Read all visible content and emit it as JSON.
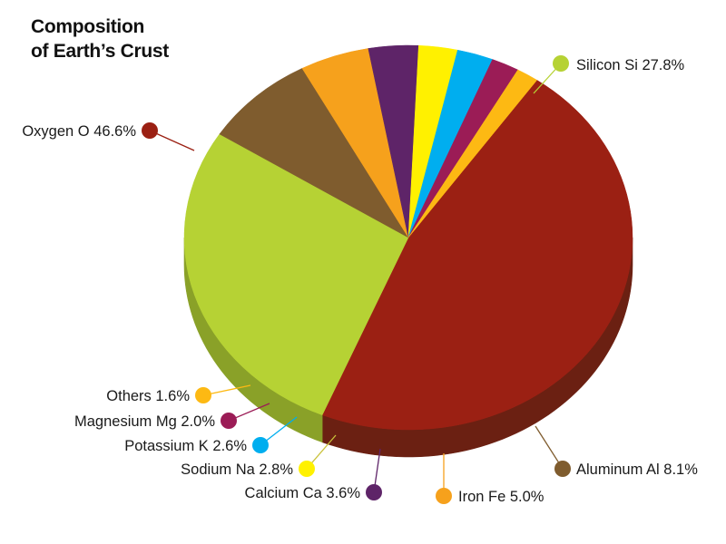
{
  "chart_data": {
    "type": "pie",
    "title_lines": [
      "Composition",
      "of Earth’s Crust"
    ],
    "slices": [
      {
        "label": "Oxygen O 46.6%",
        "name": "Oxygen",
        "symbol": "O",
        "value": 46.6,
        "color": "#9b2013",
        "side_color": "#6b2012"
      },
      {
        "label": "Silicon Si 27.8%",
        "name": "Silicon",
        "symbol": "Si",
        "value": 27.8,
        "color": "#b6d234",
        "side_color": "#8aa128"
      },
      {
        "label": "Aluminum Al 8.1%",
        "name": "Aluminum",
        "symbol": "Al",
        "value": 8.1,
        "color": "#7f5c2e",
        "side_color": "#523c1d"
      },
      {
        "label": "Iron Fe 5.0%",
        "name": "Iron",
        "symbol": "Fe",
        "value": 5.0,
        "color": "#f6a11c",
        "side_color": "#b6781f"
      },
      {
        "label": "Calcium Ca 3.6%",
        "name": "Calcium",
        "symbol": "Ca",
        "value": 3.6,
        "color": "#5e2468",
        "side_color": "#3e1546"
      },
      {
        "label": "Sodium Na 2.8%",
        "name": "Sodium",
        "symbol": "Na",
        "value": 2.8,
        "color": "#fff100",
        "side_color": "#cdbf68"
      },
      {
        "label": "Potassium K 2.6%",
        "name": "Potassium",
        "symbol": "K",
        "value": 2.6,
        "color": "#00aeef",
        "side_color": "#1f8ae6"
      },
      {
        "label": "Magnesium Mg 2.0%",
        "name": "Magnesium",
        "symbol": "Mg",
        "value": 2.0,
        "color": "#9b1c56",
        "side_color": "#6d1a3c"
      },
      {
        "label": "Others 1.6%",
        "name": "Others",
        "symbol": "",
        "value": 1.6,
        "color": "#fdb913",
        "side_color": "#f7941d"
      }
    ]
  }
}
